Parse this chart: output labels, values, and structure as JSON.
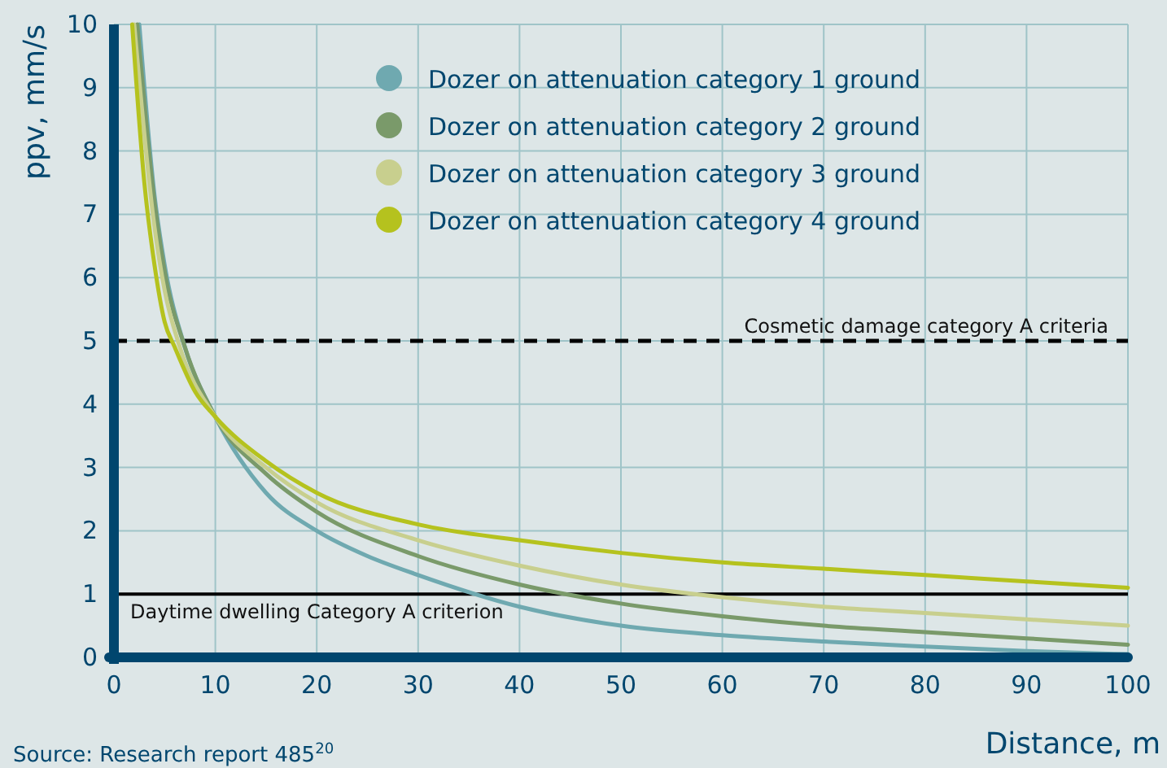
{
  "chart_data": {
    "type": "line",
    "xlabel": "Distance, m",
    "ylabel": "ppv, mm/s",
    "xlim": [
      0,
      100
    ],
    "ylim": [
      0,
      10
    ],
    "xticks": [
      0,
      10,
      20,
      30,
      40,
      50,
      60,
      70,
      80,
      90,
      100
    ],
    "yticks": [
      0,
      1,
      2,
      3,
      4,
      5,
      6,
      7,
      8,
      9,
      10
    ],
    "grid": true,
    "legend": "top",
    "marker": "none",
    "line_style": "solid",
    "series": [
      {
        "name": "Dozer on attenuation category 1 ground",
        "color": "#6fa9b0",
        "x": [
          2.5,
          4,
          5,
          7,
          10,
          15,
          20,
          25,
          30,
          40,
          50,
          60,
          70,
          80,
          90,
          100
        ],
        "values": [
          10,
          7.3,
          6.2,
          4.9,
          3.8,
          2.6,
          2.0,
          1.6,
          1.3,
          0.8,
          0.5,
          0.35,
          0.25,
          0.17,
          0.1,
          0.05
        ]
      },
      {
        "name": "Dozer on attenuation category 2 ground",
        "color": "#7a9a6a",
        "x": [
          2.3,
          4,
          5,
          7,
          10,
          15,
          20,
          30,
          40,
          50,
          60,
          70,
          80,
          90,
          100
        ],
        "values": [
          10,
          7.2,
          6.1,
          4.9,
          3.8,
          2.9,
          2.3,
          1.6,
          1.15,
          0.85,
          0.65,
          0.5,
          0.4,
          0.3,
          0.2
        ]
      },
      {
        "name": "Dozer on attenuation category 3 ground",
        "color": "#c8cf8e",
        "x": [
          2,
          4,
          5,
          6.5,
          10,
          15,
          20,
          30,
          40,
          50,
          60,
          70,
          80,
          90,
          100
        ],
        "values": [
          10,
          6.8,
          5.8,
          4.9,
          3.8,
          3.0,
          2.45,
          1.85,
          1.45,
          1.15,
          0.95,
          0.8,
          0.7,
          0.6,
          0.5
        ]
      },
      {
        "name": "Dozer on attenuation category 4 ground",
        "color": "#b5c21e",
        "x": [
          1.8,
          3,
          4,
          5,
          6,
          8,
          10,
          15,
          20,
          30,
          40,
          50,
          60,
          70,
          80,
          90,
          100
        ],
        "values": [
          10,
          7.5,
          6.2,
          5.3,
          4.9,
          4.2,
          3.8,
          3.1,
          2.6,
          2.1,
          1.85,
          1.65,
          1.5,
          1.4,
          1.3,
          1.2,
          1.1
        ]
      }
    ],
    "ref_lines": [
      {
        "axis": "y",
        "value": 5,
        "label": "Cosmetic damage category A criteria",
        "color": "#000000",
        "line_style": "dashed"
      },
      {
        "axis": "y",
        "value": 1,
        "label": "Daytime dwelling Category A criterion",
        "color": "#000000",
        "line_style": "solid"
      }
    ],
    "annotations": [
      "Source: Research report 485$^{20}$"
    ]
  }
}
